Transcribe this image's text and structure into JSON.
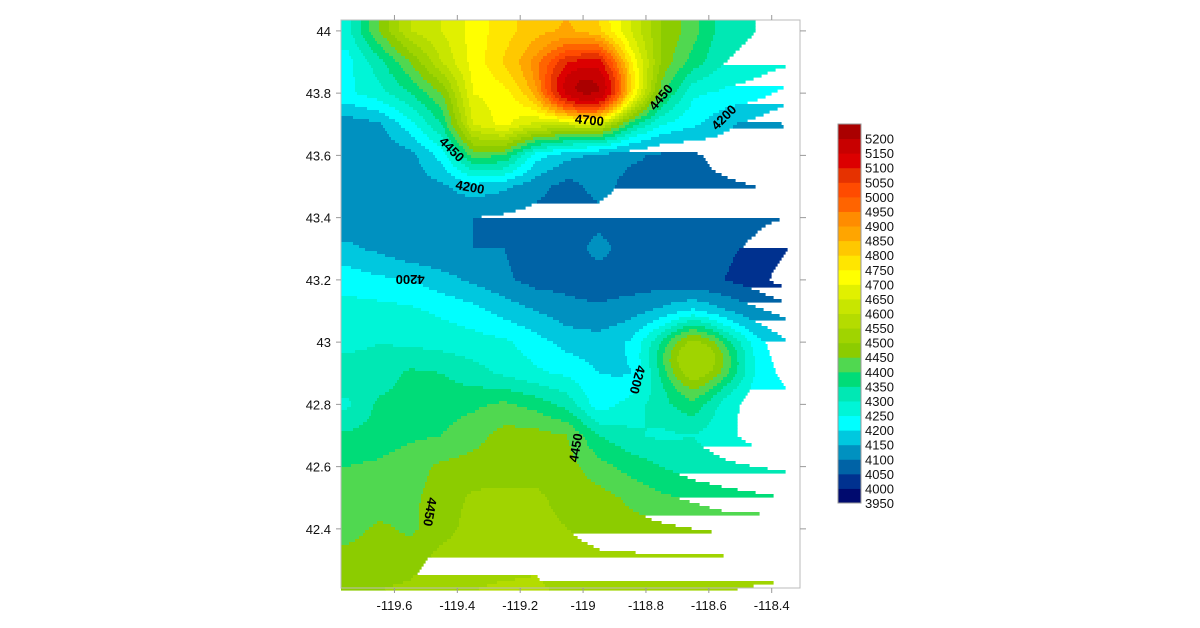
{
  "chart_data": {
    "type": "contour",
    "title": "",
    "xlabel": "",
    "ylabel": "",
    "xlim": [
      -119.77,
      -118.31
    ],
    "ylim": [
      42.21,
      44.035
    ],
    "x_ticks": [
      "-119.6",
      "-119.4",
      "-119.2",
      "-119",
      "-118.8",
      "-118.6",
      "-118.4"
    ],
    "x_tick_values": [
      -119.6,
      -119.4,
      -119.2,
      -119.0,
      -118.8,
      -118.6,
      -118.4
    ],
    "y_ticks": [
      "44",
      "43.8",
      "43.6",
      "43.4",
      "43.2",
      "43",
      "42.8",
      "42.6",
      "42.4"
    ],
    "y_tick_values": [
      44,
      43.8,
      43.6,
      43.4,
      43.2,
      43.0,
      42.8,
      42.6,
      42.4
    ],
    "grid": false,
    "legend": "colorbar right",
    "grid_x": [
      -119.75,
      -119.65,
      -119.55,
      -119.45,
      -119.35,
      -119.25,
      -119.15,
      -119.05,
      -118.95,
      -118.85,
      -118.75,
      -118.65,
      -118.55,
      -118.45,
      -118.35
    ],
    "grid_y": [
      44.0,
      43.9,
      43.8,
      43.7,
      43.6,
      43.5,
      43.4,
      43.3,
      43.2,
      43.1,
      43.0,
      42.9,
      42.8,
      42.7,
      42.6,
      42.5,
      42.4,
      42.3,
      42.2
    ],
    "z": [
      [
        4280,
        4450,
        4600,
        4650,
        4720,
        4780,
        4830,
        4850,
        4800,
        4650,
        4500,
        4420,
        4320,
        4300,
        4280
      ],
      [
        4230,
        4330,
        4450,
        4600,
        4720,
        4800,
        4880,
        5000,
        5050,
        4700,
        4480,
        4380,
        4300,
        4280,
        4260
      ],
      [
        4240,
        4280,
        4350,
        4450,
        4700,
        4720,
        4760,
        4950,
        5100,
        4650,
        4400,
        4260,
        4240,
        4220,
        4180
      ],
      [
        4120,
        4140,
        4230,
        4350,
        4650,
        4720,
        4600,
        4500,
        4500,
        4330,
        4250,
        4210,
        4160,
        4130,
        4090
      ],
      [
        4110,
        4110,
        4130,
        4220,
        4420,
        4400,
        4220,
        4160,
        4130,
        4110,
        4090,
        4090,
        4120,
        4140,
        4150
      ],
      [
        4110,
        4100,
        4120,
        4140,
        4180,
        4160,
        4120,
        4080,
        4120,
        4080,
        4080,
        4090,
        4090,
        4100,
        4100
      ],
      [
        4120,
        4110,
        4110,
        4110,
        4100,
        4090,
        4080,
        4070,
        4080,
        4070,
        4070,
        4070,
        4070,
        4060,
        4050
      ],
      [
        4160,
        4140,
        4110,
        4100,
        4100,
        4100,
        4060,
        4070,
        4120,
        4070,
        4070,
        4070,
        4060,
        4040,
        4000
      ],
      [
        4230,
        4210,
        4200,
        4170,
        4140,
        4110,
        4080,
        4080,
        4070,
        4070,
        4070,
        4060,
        4050,
        4020,
        3970
      ],
      [
        4270,
        4270,
        4260,
        4240,
        4220,
        4180,
        4150,
        4120,
        4110,
        4130,
        4160,
        4200,
        4150,
        4110,
        4080
      ],
      [
        4280,
        4300,
        4290,
        4280,
        4270,
        4260,
        4220,
        4180,
        4170,
        4200,
        4300,
        4450,
        4300,
        4210,
        4150
      ],
      [
        4340,
        4320,
        4360,
        4350,
        4320,
        4290,
        4260,
        4240,
        4200,
        4190,
        4300,
        4470,
        4330,
        4230,
        4180
      ],
      [
        4290,
        4360,
        4370,
        4380,
        4390,
        4410,
        4380,
        4330,
        4220,
        4270,
        4330,
        4380,
        4270,
        4220,
        4220
      ],
      [
        4360,
        4370,
        4390,
        4400,
        4430,
        4470,
        4470,
        4450,
        4350,
        4310,
        4290,
        4300,
        4270,
        4220,
        4230
      ],
      [
        4400,
        4410,
        4430,
        4460,
        4470,
        4480,
        4480,
        4470,
        4420,
        4380,
        4350,
        4320,
        4310,
        4300,
        4290
      ],
      [
        4410,
        4420,
        4440,
        4470,
        4510,
        4510,
        4510,
        4480,
        4470,
        4440,
        4410,
        4390,
        4370,
        4360,
        4350
      ],
      [
        4430,
        4460,
        4440,
        4480,
        4520,
        4530,
        4520,
        4500,
        4480,
        4470,
        4460,
        4450,
        4440,
        4440,
        4440
      ],
      [
        4470,
        4480,
        4480,
        4520,
        4530,
        4530,
        4540,
        4520,
        4510,
        4510,
        4510,
        4510,
        4510,
        4510,
        4510
      ],
      [
        4490,
        4500,
        4510,
        4540,
        4550,
        4560,
        4560,
        4540,
        4540,
        4530,
        4540,
        4550,
        4550,
        4560,
        4570
      ]
    ],
    "peaks": [
      {
        "lon": -119.0,
        "lat": 43.82,
        "value": 5230,
        "radius": 0.07
      },
      {
        "lon": -118.635,
        "lat": 42.945,
        "value": 4560,
        "radius": 0.06
      }
    ],
    "contour_labels": [
      {
        "text": "4450",
        "lon": -119.42,
        "lat": 43.617,
        "angle": 45
      },
      {
        "text": "4200",
        "lon": -119.36,
        "lat": 43.495,
        "angle": 10
      },
      {
        "text": "4700",
        "lon": -118.98,
        "lat": 43.71,
        "angle": 5
      },
      {
        "text": "4450",
        "lon": -118.75,
        "lat": 43.785,
        "angle": -50
      },
      {
        "text": "4200",
        "lon": -118.55,
        "lat": 43.72,
        "angle": -45
      },
      {
        "text": "4200",
        "lon": -119.55,
        "lat": 43.205,
        "angle": 180
      },
      {
        "text": "4200",
        "lon": -118.83,
        "lat": 42.88,
        "angle": 105
      },
      {
        "text": "4450",
        "lon": -119.02,
        "lat": 42.66,
        "angle": -80
      },
      {
        "text": "4450",
        "lon": -119.49,
        "lat": 42.455,
        "angle": 100
      }
    ],
    "colorbar": {
      "levels": [
        3950,
        4000,
        4050,
        4100,
        4150,
        4200,
        4250,
        4300,
        4350,
        4400,
        4450,
        4500,
        4550,
        4600,
        4650,
        4700,
        4750,
        4800,
        4850,
        4900,
        4950,
        5000,
        5050,
        5100,
        5150,
        5200,
        5250
      ],
      "labels": [
        "5200",
        "5150",
        "5100",
        "5050",
        "5000",
        "4950",
        "4900",
        "4850",
        "4800",
        "4750",
        "4700",
        "4650",
        "4600",
        "4550",
        "4500",
        "4450",
        "4400",
        "4350",
        "4300",
        "4250",
        "4200",
        "4150",
        "4100",
        "4050",
        "4000",
        "3950"
      ],
      "colors": [
        "#000a6e",
        "#00318f",
        "#0063a6",
        "#0091c0",
        "#00c8df",
        "#00ffff",
        "#00f5d7",
        "#00e8b4",
        "#00dc78",
        "#50d850",
        "#8ccc00",
        "#a0d400",
        "#b4dc00",
        "#c8e600",
        "#e1f000",
        "#ffff00",
        "#ffe600",
        "#ffc800",
        "#ffa500",
        "#ff8c00",
        "#ff6400",
        "#ff4b00",
        "#e63200",
        "#dc0000",
        "#c80000",
        "#aa0000"
      ]
    }
  }
}
